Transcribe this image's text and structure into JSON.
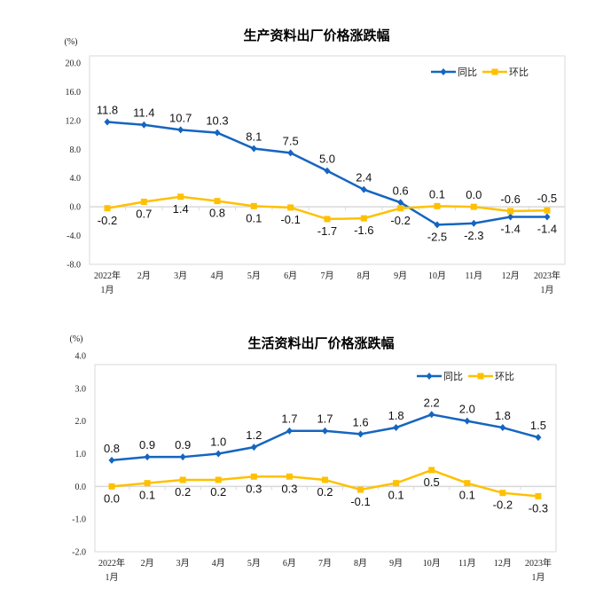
{
  "chart_data": [
    {
      "type": "line",
      "title": "生产资料出厂价格涨跌幅",
      "ylabel": "(%)",
      "categories": [
        "2022年\n1月",
        "2月",
        "3月",
        "4月",
        "5月",
        "6月",
        "7月",
        "8月",
        "9月",
        "10月",
        "11月",
        "12月",
        "2023年\n1月"
      ],
      "ylim": [
        -8,
        20
      ],
      "yticks": [
        "20.0",
        "16.0",
        "12.0",
        "8.0",
        "4.0",
        "0.0",
        "-4.0",
        "-8.0"
      ],
      "ytick_values": [
        20,
        16,
        12,
        8,
        4,
        0,
        -4,
        -8
      ],
      "legend": "top-right",
      "series": [
        {
          "name": "同比",
          "color": "#1565C0",
          "marker": "diamond",
          "values": [
            11.8,
            11.4,
            10.7,
            10.3,
            8.1,
            7.5,
            5.0,
            2.4,
            0.6,
            -2.5,
            -2.3,
            -1.4,
            -1.4
          ],
          "labels": [
            "11.8",
            "11.4",
            "10.7",
            "10.3",
            "8.1",
            "7.5",
            "5.0",
            "2.4",
            "0.6",
            "-2.5",
            "-2.3",
            "-1.4",
            "-1.4"
          ]
        },
        {
          "name": "环比",
          "color": "#FFC000",
          "marker": "square",
          "values": [
            -0.2,
            0.7,
            1.4,
            0.8,
            0.1,
            -0.1,
            -1.7,
            -1.6,
            -0.2,
            0.1,
            0.0,
            -0.6,
            -0.5
          ],
          "labels": [
            "-0.2",
            "0.7",
            "1.4",
            "0.8",
            "0.1",
            "-0.1",
            "-1.7",
            "-1.6",
            "-0.2",
            "0.1",
            "0.0",
            "-0.6",
            "-0.5"
          ]
        }
      ]
    },
    {
      "type": "line",
      "title": "生活资料出厂价格涨跌幅",
      "ylabel": "(%)",
      "categories": [
        "2022年\n1月",
        "2月",
        "3月",
        "4月",
        "5月",
        "6月",
        "7月",
        "8月",
        "9月",
        "10月",
        "11月",
        "12月",
        "2023年\n1月"
      ],
      "ylim": [
        -2,
        4
      ],
      "yticks": [
        "4.0",
        "3.0",
        "2.0",
        "1.0",
        "0.0",
        "-1.0",
        "-2.0"
      ],
      "ytick_values": [
        4,
        3,
        2,
        1,
        0,
        -1,
        -2
      ],
      "legend": "top-right",
      "series": [
        {
          "name": "同比",
          "color": "#1565C0",
          "marker": "diamond",
          "values": [
            0.8,
            0.9,
            0.9,
            1.0,
            1.2,
            1.7,
            1.7,
            1.6,
            1.8,
            2.2,
            2.0,
            1.8,
            1.5
          ],
          "labels": [
            "0.8",
            "0.9",
            "0.9",
            "1.0",
            "1.2",
            "1.7",
            "1.7",
            "1.6",
            "1.8",
            "2.2",
            "2.0",
            "1.8",
            "1.5"
          ]
        },
        {
          "name": "环比",
          "color": "#FFC000",
          "marker": "square",
          "values": [
            0.0,
            0.1,
            0.2,
            0.2,
            0.3,
            0.3,
            0.2,
            -0.1,
            0.1,
            0.5,
            0.1,
            -0.2,
            -0.3
          ],
          "labels": [
            "0.0",
            "0.1",
            "0.2",
            "0.2",
            "0.3",
            "0.3",
            "0.2",
            "-0.1",
            "0.1",
            "0.5",
            "0.1",
            "-0.2",
            "-0.3"
          ]
        }
      ]
    }
  ]
}
